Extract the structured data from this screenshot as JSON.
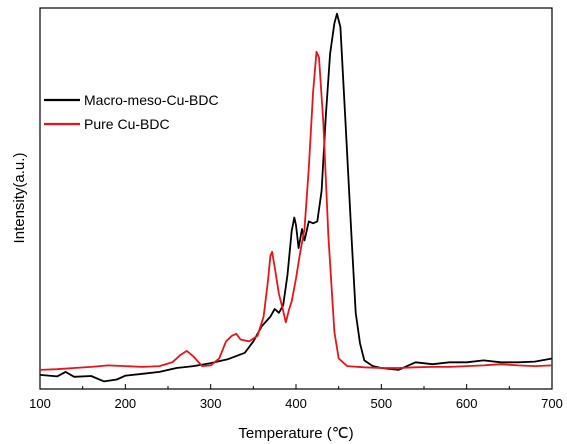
{
  "chart_data": {
    "type": "line",
    "xlabel": "Temperature (℃)",
    "ylabel": "Intensity(a.u.)",
    "xlim": [
      100,
      700
    ],
    "ylim": [
      0,
      1
    ],
    "x_ticks": [
      "100",
      "200",
      "300",
      "400",
      "500",
      "600",
      "700"
    ],
    "grid": false,
    "legend_position": "top-left",
    "y_ticks_shown": false,
    "series": [
      {
        "name": "Macro-meso-Cu-BDC",
        "color": "#000000",
        "points": [
          [
            100,
            0.037
          ],
          [
            120,
            0.033
          ],
          [
            130,
            0.045
          ],
          [
            140,
            0.032
          ],
          [
            160,
            0.034
          ],
          [
            175,
            0.02
          ],
          [
            190,
            0.025
          ],
          [
            200,
            0.035
          ],
          [
            220,
            0.04
          ],
          [
            240,
            0.045
          ],
          [
            260,
            0.055
          ],
          [
            280,
            0.06
          ],
          [
            300,
            0.068
          ],
          [
            320,
            0.078
          ],
          [
            340,
            0.095
          ],
          [
            350,
            0.125
          ],
          [
            360,
            0.165
          ],
          [
            370,
            0.19
          ],
          [
            375,
            0.21
          ],
          [
            380,
            0.2
          ],
          [
            385,
            0.22
          ],
          [
            390,
            0.3
          ],
          [
            395,
            0.415
          ],
          [
            398,
            0.45
          ],
          [
            400,
            0.43
          ],
          [
            403,
            0.37
          ],
          [
            405,
            0.395
          ],
          [
            407,
            0.42
          ],
          [
            410,
            0.39
          ],
          [
            415,
            0.44
          ],
          [
            420,
            0.435
          ],
          [
            425,
            0.44
          ],
          [
            430,
            0.52
          ],
          [
            435,
            0.72
          ],
          [
            440,
            0.88
          ],
          [
            445,
            0.96
          ],
          [
            448,
            0.985
          ],
          [
            452,
            0.95
          ],
          [
            458,
            0.7
          ],
          [
            465,
            0.4
          ],
          [
            470,
            0.2
          ],
          [
            475,
            0.12
          ],
          [
            480,
            0.075
          ],
          [
            490,
            0.06
          ],
          [
            500,
            0.055
          ],
          [
            520,
            0.05
          ],
          [
            540,
            0.07
          ],
          [
            560,
            0.065
          ],
          [
            580,
            0.07
          ],
          [
            600,
            0.07
          ],
          [
            620,
            0.075
          ],
          [
            640,
            0.07
          ],
          [
            660,
            0.07
          ],
          [
            680,
            0.072
          ],
          [
            700,
            0.08
          ]
        ]
      },
      {
        "name": "Pure Cu-BDC",
        "color": "#e8141a",
        "points": [
          [
            100,
            0.05
          ],
          [
            120,
            0.052
          ],
          [
            140,
            0.055
          ],
          [
            160,
            0.058
          ],
          [
            180,
            0.062
          ],
          [
            200,
            0.06
          ],
          [
            220,
            0.058
          ],
          [
            240,
            0.06
          ],
          [
            255,
            0.07
          ],
          [
            265,
            0.09
          ],
          [
            272,
            0.1
          ],
          [
            280,
            0.085
          ],
          [
            290,
            0.06
          ],
          [
            300,
            0.062
          ],
          [
            310,
            0.08
          ],
          [
            318,
            0.125
          ],
          [
            325,
            0.14
          ],
          [
            330,
            0.145
          ],
          [
            335,
            0.13
          ],
          [
            345,
            0.125
          ],
          [
            355,
            0.14
          ],
          [
            362,
            0.19
          ],
          [
            367,
            0.28
          ],
          [
            370,
            0.35
          ],
          [
            372,
            0.36
          ],
          [
            375,
            0.32
          ],
          [
            380,
            0.25
          ],
          [
            385,
            0.205
          ],
          [
            388,
            0.175
          ],
          [
            392,
            0.21
          ],
          [
            395,
            0.23
          ],
          [
            400,
            0.29
          ],
          [
            405,
            0.36
          ],
          [
            410,
            0.42
          ],
          [
            415,
            0.58
          ],
          [
            420,
            0.78
          ],
          [
            424,
            0.885
          ],
          [
            427,
            0.87
          ],
          [
            432,
            0.7
          ],
          [
            438,
            0.4
          ],
          [
            445,
            0.15
          ],
          [
            450,
            0.08
          ],
          [
            460,
            0.06
          ],
          [
            480,
            0.057
          ],
          [
            500,
            0.055
          ],
          [
            520,
            0.055
          ],
          [
            540,
            0.057
          ],
          [
            560,
            0.058
          ],
          [
            580,
            0.058
          ],
          [
            600,
            0.06
          ],
          [
            620,
            0.062
          ],
          [
            640,
            0.065
          ],
          [
            660,
            0.062
          ],
          [
            680,
            0.06
          ],
          [
            700,
            0.062
          ]
        ]
      }
    ]
  }
}
